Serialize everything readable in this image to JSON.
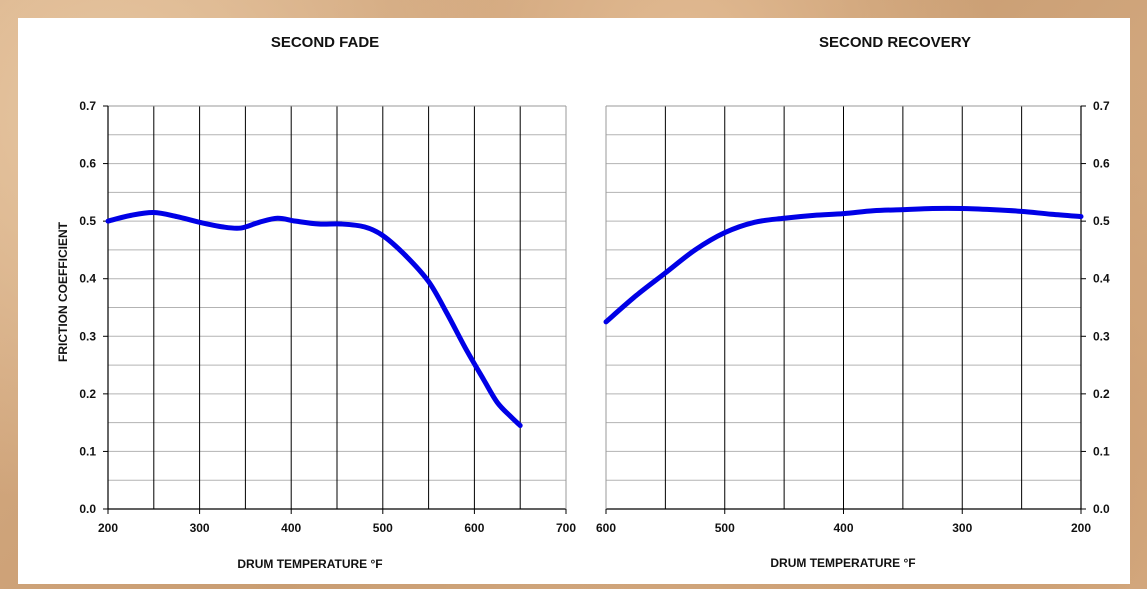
{
  "chart_data": [
    {
      "type": "line",
      "title": "SECOND FADE",
      "xlabel": "DRUM TEMPERATURE °F",
      "ylabel": "FRICTION COEFFICIENT",
      "xlim": [
        200,
        700
      ],
      "ylim": [
        0.0,
        0.7
      ],
      "x_ticks": [
        "200",
        "300",
        "400",
        "500",
        "600",
        "700"
      ],
      "y_ticks": [
        "0.0",
        "0.1",
        "0.2",
        "0.3",
        "0.4",
        "0.5",
        "0.6",
        "0.7"
      ],
      "grid": true,
      "line_color": "#0000e6",
      "series": [
        {
          "x": [
            200,
            225,
            250,
            275,
            300,
            325,
            345,
            365,
            385,
            405,
            430,
            455,
            480,
            500,
            525,
            550,
            570,
            590,
            610,
            625,
            640,
            650
          ],
          "y": [
            0.5,
            0.51,
            0.515,
            0.508,
            0.498,
            0.49,
            0.488,
            0.498,
            0.505,
            0.5,
            0.495,
            0.495,
            0.49,
            0.475,
            0.44,
            0.395,
            0.34,
            0.28,
            0.225,
            0.185,
            0.16,
            0.145
          ]
        }
      ]
    },
    {
      "type": "line",
      "title": "SECOND RECOVERY",
      "xlabel": "DRUM TEMPERATURE °F",
      "ylabel": "",
      "xlim": [
        600,
        200
      ],
      "ylim": [
        0.0,
        0.7
      ],
      "x_ticks": [
        "600",
        "500",
        "400",
        "300",
        "200"
      ],
      "y_ticks": [
        "0.0",
        "0.1",
        "0.2",
        "0.3",
        "0.4",
        "0.5",
        "0.6",
        "0.7"
      ],
      "grid": true,
      "line_color": "#0000e6",
      "series": [
        {
          "x": [
            600,
            575,
            550,
            525,
            500,
            475,
            450,
            425,
            400,
            375,
            350,
            325,
            300,
            275,
            250,
            225,
            200
          ],
          "y": [
            0.325,
            0.37,
            0.41,
            0.45,
            0.48,
            0.498,
            0.505,
            0.51,
            0.513,
            0.518,
            0.52,
            0.522,
            0.522,
            0.52,
            0.517,
            0.512,
            0.508
          ]
        }
      ]
    }
  ]
}
